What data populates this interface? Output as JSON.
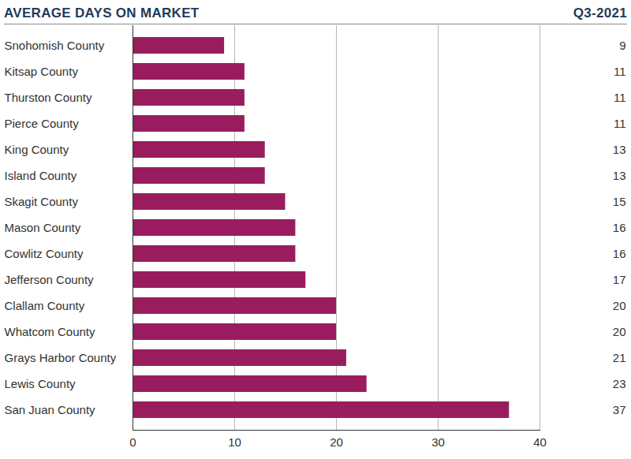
{
  "chart_data": {
    "type": "bar",
    "orientation": "horizontal",
    "title": "AVERAGE DAYS ON MARKET",
    "subtitle": "Q3-2021",
    "categories": [
      "Snohomish County",
      "Kitsap County",
      "Thurston County",
      "Pierce County",
      "King County",
      "Island County",
      "Skagit County",
      "Mason County",
      "Cowlitz County",
      "Jefferson County",
      "Clallam County",
      "Whatcom County",
      "Grays Harbor County",
      "Lewis County",
      "San Juan County"
    ],
    "values": [
      9,
      11,
      11,
      11,
      13,
      13,
      15,
      16,
      16,
      17,
      20,
      20,
      21,
      23,
      37
    ],
    "color": "#991d5e",
    "xlim": [
      0,
      40
    ],
    "xticks": [
      0,
      10,
      20,
      30,
      40
    ],
    "grid": true,
    "data_labels": true
  }
}
